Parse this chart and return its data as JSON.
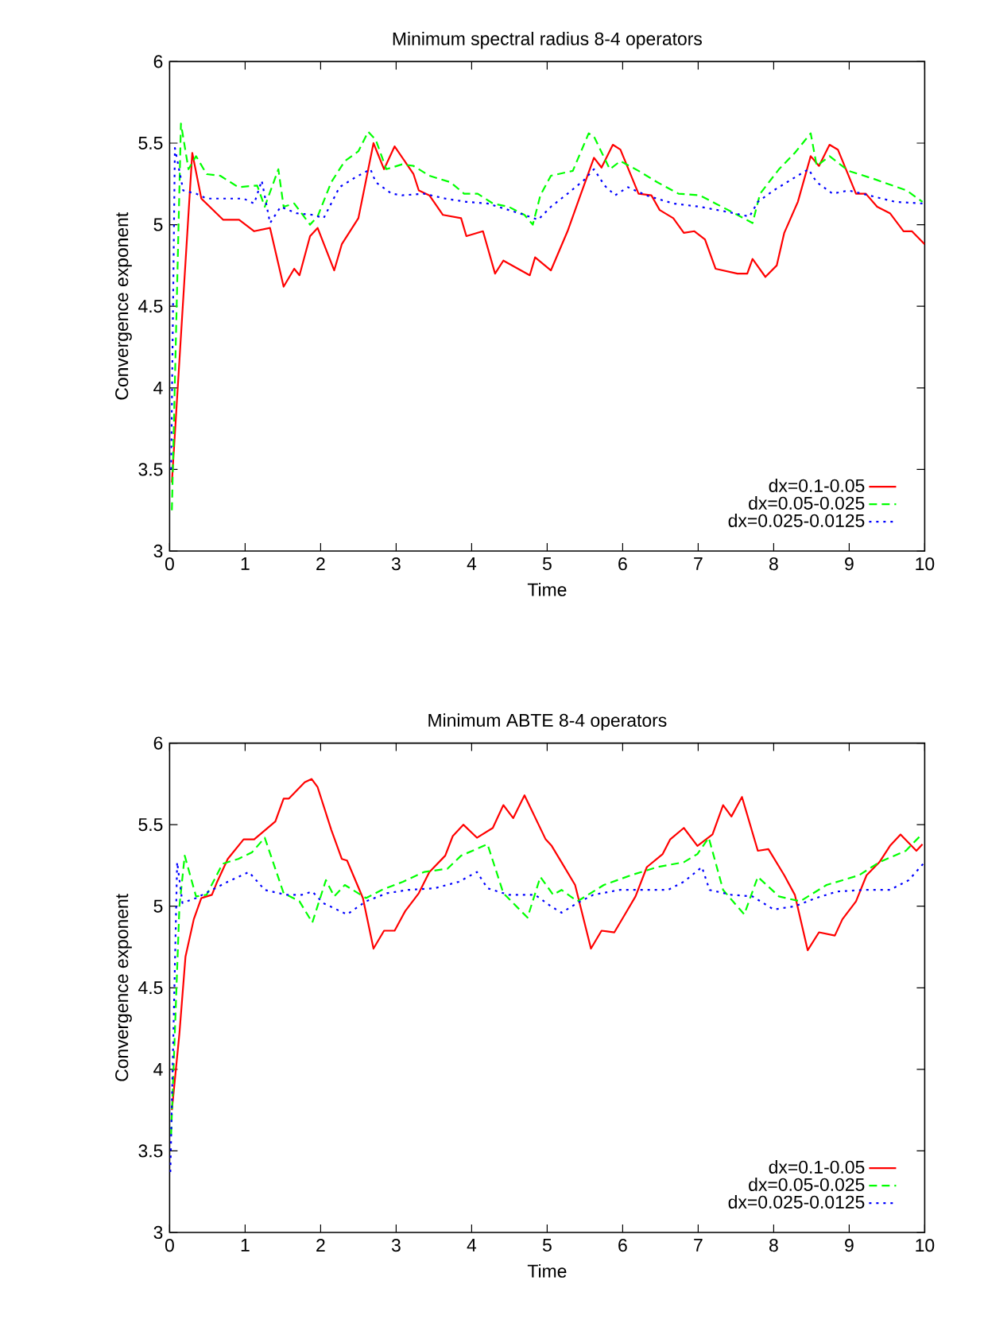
{
  "chart_data": [
    {
      "type": "line",
      "title": "Minimum spectral radius 8-4 operators",
      "xlabel": "Time",
      "ylabel": "Convergence exponent",
      "xlim": [
        0,
        10
      ],
      "ylim": [
        3,
        6
      ],
      "xticks": [
        0,
        1,
        2,
        3,
        4,
        5,
        6,
        7,
        8,
        9,
        10
      ],
      "yticks": [
        3,
        3.5,
        4,
        4.5,
        5,
        5.5,
        6
      ],
      "legend": "bottom right",
      "series": [
        {
          "name": "dx=0.1-0.05",
          "color": "#ff0000",
          "line_style": "solid",
          "x": [
            0.03,
            0.3,
            0.42,
            0.71,
            0.92,
            1.12,
            1.33,
            1.51,
            1.65,
            1.72,
            1.86,
            1.96,
            2.18,
            2.28,
            2.5,
            2.7,
            2.84,
            2.98,
            3.23,
            3.3,
            3.44,
            3.62,
            3.86,
            3.93,
            4.15,
            4.31,
            4.42,
            4.77,
            4.84,
            5.05,
            5.27,
            5.44,
            5.62,
            5.72,
            5.87,
            5.97,
            6.21,
            6.38,
            6.49,
            6.67,
            6.81,
            6.95,
            7.09,
            7.23,
            7.52,
            7.65,
            7.72,
            7.89,
            8.04,
            8.14,
            8.32,
            8.49,
            8.6,
            8.74,
            8.85,
            9.09,
            9.22,
            9.37,
            9.54,
            9.72,
            9.83,
            10.0
          ],
          "values": [
            3.42,
            5.44,
            5.16,
            5.03,
            5.03,
            4.96,
            4.98,
            4.62,
            4.73,
            4.69,
            4.93,
            4.98,
            4.72,
            4.88,
            5.04,
            5.5,
            5.34,
            5.48,
            5.31,
            5.21,
            5.18,
            5.06,
            5.04,
            4.93,
            4.96,
            4.7,
            4.78,
            4.69,
            4.8,
            4.72,
            4.96,
            5.18,
            5.41,
            5.35,
            5.49,
            5.46,
            5.19,
            5.18,
            5.09,
            5.04,
            4.95,
            4.96,
            4.91,
            4.73,
            4.7,
            4.7,
            4.79,
            4.68,
            4.75,
            4.95,
            5.14,
            5.42,
            5.36,
            5.49,
            5.46,
            5.19,
            5.19,
            5.11,
            5.07,
            4.96,
            4.96,
            4.88
          ]
        },
        {
          "name": "dx=0.05-0.025",
          "color": "#00ff00",
          "line_style": "dashed",
          "x": [
            0.03,
            0.15,
            0.25,
            0.35,
            0.49,
            0.67,
            0.91,
            1.16,
            1.26,
            1.44,
            1.51,
            1.65,
            1.86,
            1.96,
            2.14,
            2.32,
            2.5,
            2.63,
            2.73,
            2.87,
            3.08,
            3.23,
            3.44,
            3.72,
            3.9,
            4.08,
            4.28,
            4.49,
            4.7,
            4.81,
            4.91,
            5.05,
            5.34,
            5.55,
            5.62,
            5.83,
            5.97,
            6.21,
            6.46,
            6.74,
            7.02,
            7.23,
            7.52,
            7.72,
            7.82,
            8.07,
            8.28,
            8.49,
            8.57,
            8.74,
            8.99,
            9.33,
            9.76,
            9.97
          ],
          "values": [
            3.25,
            5.62,
            5.34,
            5.42,
            5.31,
            5.3,
            5.23,
            5.24,
            5.11,
            5.34,
            5.11,
            5.13,
            5.0,
            5.05,
            5.26,
            5.39,
            5.45,
            5.57,
            5.52,
            5.34,
            5.37,
            5.36,
            5.3,
            5.26,
            5.19,
            5.19,
            5.13,
            5.11,
            5.06,
            5.0,
            5.18,
            5.3,
            5.33,
            5.56,
            5.54,
            5.34,
            5.39,
            5.33,
            5.26,
            5.19,
            5.18,
            5.13,
            5.06,
            5.01,
            5.19,
            5.34,
            5.44,
            5.56,
            5.36,
            5.42,
            5.33,
            5.28,
            5.21,
            5.14
          ]
        },
        {
          "name": "dx=0.025-0.0125",
          "color": "#0000ff",
          "line_style": "dotted",
          "x": [
            0.02,
            0.07,
            0.18,
            0.35,
            0.49,
            0.71,
            0.98,
            1.12,
            1.22,
            1.33,
            1.47,
            1.68,
            1.9,
            2.04,
            2.25,
            2.46,
            2.66,
            2.73,
            2.94,
            3.08,
            3.37,
            3.65,
            3.93,
            4.21,
            4.49,
            4.7,
            4.88,
            5.05,
            5.27,
            5.48,
            5.62,
            5.76,
            5.9,
            6.07,
            6.31,
            6.67,
            7.02,
            7.37,
            7.68,
            7.79,
            8.0,
            8.21,
            8.46,
            8.57,
            8.78,
            8.99,
            9.26,
            9.61,
            9.97
          ],
          "values": [
            3.5,
            5.47,
            5.21,
            5.19,
            5.16,
            5.16,
            5.16,
            5.13,
            5.27,
            5.01,
            5.11,
            5.07,
            5.06,
            5.04,
            5.23,
            5.29,
            5.34,
            5.26,
            5.19,
            5.18,
            5.19,
            5.16,
            5.14,
            5.13,
            5.09,
            5.06,
            5.03,
            5.11,
            5.19,
            5.27,
            5.34,
            5.24,
            5.18,
            5.23,
            5.18,
            5.13,
            5.11,
            5.08,
            5.05,
            5.14,
            5.21,
            5.27,
            5.34,
            5.26,
            5.19,
            5.21,
            5.18,
            5.14,
            5.13
          ]
        }
      ]
    },
    {
      "type": "line",
      "title": "Minimum ABTE 8-4 operators",
      "xlabel": "Time",
      "ylabel": "Convergence exponent",
      "xlim": [
        0,
        10
      ],
      "ylim": [
        3,
        6
      ],
      "xticks": [
        0,
        1,
        2,
        3,
        4,
        5,
        6,
        7,
        8,
        9,
        10
      ],
      "yticks": [
        3,
        3.5,
        4,
        4.5,
        5,
        5.5,
        6
      ],
      "legend": "bottom right",
      "series": [
        {
          "name": "dx=0.1-0.05",
          "color": "#ff0000",
          "line_style": "solid",
          "x": [
            0.03,
            0.13,
            0.21,
            0.32,
            0.42,
            0.56,
            0.63,
            0.77,
            0.98,
            1.12,
            1.4,
            1.51,
            1.58,
            1.79,
            1.88,
            1.96,
            2.14,
            2.28,
            2.35,
            2.56,
            2.7,
            2.84,
            2.98,
            3.12,
            3.3,
            3.44,
            3.65,
            3.75,
            3.89,
            4.07,
            4.28,
            4.42,
            4.55,
            4.7,
            4.98,
            5.06,
            5.19,
            5.37,
            5.58,
            5.72,
            5.89,
            6.03,
            6.17,
            6.32,
            6.53,
            6.63,
            6.81,
            6.99,
            7.19,
            7.33,
            7.44,
            7.58,
            7.79,
            7.93,
            8.14,
            8.28,
            8.45,
            8.6,
            8.81,
            8.91,
            9.09,
            9.23,
            9.4,
            9.54,
            9.68,
            9.89,
            9.97
          ],
          "values": [
            3.75,
            4.22,
            4.69,
            4.92,
            5.05,
            5.07,
            5.15,
            5.29,
            5.41,
            5.41,
            5.52,
            5.66,
            5.66,
            5.76,
            5.78,
            5.73,
            5.47,
            5.29,
            5.28,
            5.05,
            4.74,
            4.85,
            4.85,
            4.97,
            5.08,
            5.21,
            5.31,
            5.43,
            5.5,
            5.42,
            5.48,
            5.62,
            5.54,
            5.68,
            5.41,
            5.37,
            5.27,
            5.13,
            4.74,
            4.85,
            4.84,
            4.95,
            5.06,
            5.24,
            5.32,
            5.41,
            5.48,
            5.37,
            5.44,
            5.62,
            5.55,
            5.67,
            5.34,
            5.35,
            5.19,
            5.07,
            4.73,
            4.84,
            4.82,
            4.92,
            5.03,
            5.19,
            5.27,
            5.37,
            5.44,
            5.34,
            5.38
          ]
        },
        {
          "name": "dx=0.05-0.025",
          "color": "#00ff00",
          "line_style": "dashed",
          "x": [
            0.02,
            0.13,
            0.2,
            0.35,
            0.49,
            0.7,
            0.91,
            1.09,
            1.26,
            1.51,
            1.72,
            1.89,
            2.07,
            2.18,
            2.32,
            2.6,
            2.81,
            3.09,
            3.37,
            3.68,
            3.86,
            4.21,
            4.42,
            4.74,
            4.91,
            5.08,
            5.19,
            5.4,
            5.75,
            6.11,
            6.46,
            6.81,
            6.99,
            7.14,
            7.33,
            7.61,
            7.79,
            8.07,
            8.35,
            8.7,
            9.13,
            9.4,
            9.75,
            9.96
          ],
          "values": [
            3.6,
            5.0,
            5.31,
            5.06,
            5.07,
            5.26,
            5.29,
            5.33,
            5.42,
            5.08,
            5.03,
            4.9,
            5.16,
            5.06,
            5.13,
            5.05,
            5.1,
            5.15,
            5.21,
            5.23,
            5.31,
            5.38,
            5.08,
            4.93,
            5.18,
            5.07,
            5.1,
            5.03,
            5.13,
            5.19,
            5.24,
            5.27,
            5.32,
            5.42,
            5.1,
            4.95,
            5.18,
            5.06,
            5.03,
            5.13,
            5.19,
            5.27,
            5.34,
            5.44
          ]
        },
        {
          "name": "dx=0.025-0.0125",
          "color": "#0000ff",
          "line_style": "dotted",
          "x": [
            0.01,
            0.1,
            0.17,
            0.35,
            0.56,
            0.77,
            1.05,
            1.26,
            1.54,
            1.75,
            1.89,
            2.03,
            2.35,
            2.6,
            2.88,
            3.16,
            3.51,
            3.83,
            4.07,
            4.21,
            4.49,
            4.84,
            5.05,
            5.19,
            5.4,
            5.61,
            5.96,
            6.32,
            6.6,
            6.81,
            7.05,
            7.15,
            7.44,
            7.72,
            8.0,
            8.28,
            8.56,
            8.84,
            9.19,
            9.54,
            9.79,
            9.98
          ],
          "values": [
            3.37,
            5.27,
            5.02,
            5.05,
            5.1,
            5.15,
            5.21,
            5.1,
            5.07,
            5.07,
            5.09,
            5.02,
            4.95,
            5.03,
            5.08,
            5.1,
            5.11,
            5.15,
            5.21,
            5.11,
            5.07,
            5.07,
            5.0,
            4.96,
            5.02,
            5.07,
            5.1,
            5.1,
            5.1,
            5.15,
            5.24,
            5.1,
            5.07,
            5.06,
            4.98,
            5.0,
            5.05,
            5.09,
            5.1,
            5.1,
            5.16,
            5.26
          ]
        }
      ]
    }
  ]
}
